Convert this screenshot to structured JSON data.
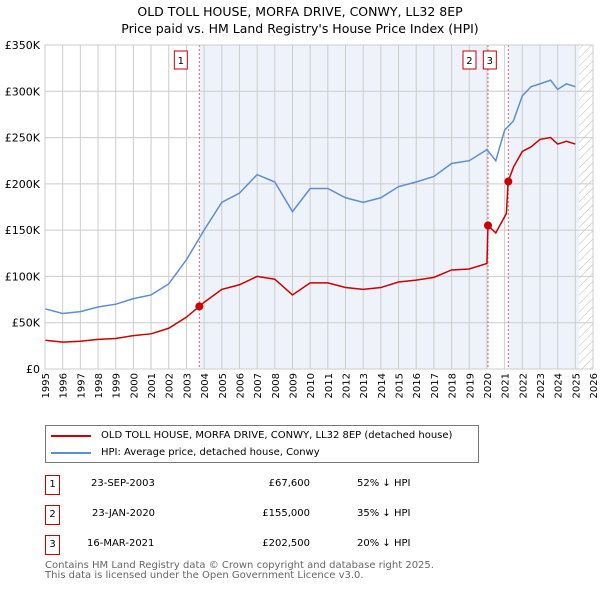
{
  "title": "OLD TOLL HOUSE, MORFA DRIVE, CONWY, LL32 8EP",
  "subtitle": "Price paid vs. HM Land Registry's House Price Index (HPI)",
  "colors": {
    "property": "#cc0000",
    "hpi": "#5b8fd0",
    "shade": "#eef3fb"
  },
  "chart_data": {
    "type": "line",
    "xlim": [
      1995,
      2026
    ],
    "ylim": [
      0,
      350000
    ],
    "x_ticks": [
      "1995",
      "1996",
      "1997",
      "1998",
      "1999",
      "2000",
      "2001",
      "2002",
      "2003",
      "2004",
      "2005",
      "2006",
      "2007",
      "2008",
      "2009",
      "2010",
      "2011",
      "2012",
      "2013",
      "2014",
      "2015",
      "2016",
      "2017",
      "2018",
      "2019",
      "2020",
      "2021",
      "2022",
      "2023",
      "2024",
      "2025",
      "2026"
    ],
    "y_ticks": [
      {
        "v": 0,
        "label": "£0"
      },
      {
        "v": 50000,
        "label": "£50K"
      },
      {
        "v": 100000,
        "label": "£100K"
      },
      {
        "v": 150000,
        "label": "£150K"
      },
      {
        "v": 200000,
        "label": "£200K"
      },
      {
        "v": 250000,
        "label": "£250K"
      },
      {
        "v": 300000,
        "label": "£300K"
      },
      {
        "v": 350000,
        "label": "£350K"
      }
    ],
    "series": [
      {
        "name": "OLD TOLL HOUSE, MORFA DRIVE, CONWY, LL32 8EP (detached house)",
        "color": "#cc0000",
        "x": [
          1995,
          1996,
          1997,
          1998,
          1999,
          2000,
          2001,
          2002,
          2003,
          2003.73,
          2004,
          2005,
          2006,
          2007,
          2008,
          2009,
          2010,
          2011,
          2012,
          2013,
          2014,
          2015,
          2016,
          2017,
          2018,
          2019,
          2020.0,
          2020.06,
          2020.5,
          2021.1,
          2021.2,
          2021.5,
          2022,
          2022.5,
          2023,
          2023.6,
          2024,
          2024.5,
          2025
        ],
        "y": [
          31000,
          29000,
          30000,
          32000,
          33000,
          36000,
          38000,
          44000,
          56000,
          67600,
          72000,
          86000,
          91000,
          100000,
          97000,
          80000,
          93000,
          93000,
          88000,
          86000,
          88000,
          94000,
          96000,
          99000,
          107000,
          108000,
          114000,
          155000,
          147000,
          168000,
          202500,
          218000,
          235000,
          240000,
          248000,
          250000,
          243000,
          246000,
          243000
        ]
      },
      {
        "name": "HPI: Average price, detached house, Conwy",
        "color": "#5b8fd0",
        "x": [
          1995,
          1996,
          1997,
          1998,
          1999,
          2000,
          2001,
          2002,
          2003,
          2004,
          2005,
          2006,
          2007,
          2008,
          2009,
          2010,
          2011,
          2012,
          2013,
          2014,
          2015,
          2016,
          2017,
          2018,
          2019,
          2020,
          2020.5,
          2021,
          2021.5,
          2022,
          2022.5,
          2023,
          2023.6,
          2024,
          2024.5,
          2025
        ],
        "y": [
          65000,
          60000,
          62000,
          67000,
          70000,
          76000,
          80000,
          92000,
          118000,
          150000,
          180000,
          190000,
          210000,
          202000,
          170000,
          195000,
          195000,
          185000,
          180000,
          185000,
          197000,
          202000,
          208000,
          222000,
          225000,
          237000,
          225000,
          258000,
          268000,
          295000,
          305000,
          308000,
          312000,
          302000,
          308000,
          305000
        ]
      }
    ],
    "sales": [
      {
        "n": "1",
        "x": 2003.73,
        "y": 67600
      },
      {
        "n": "2",
        "x": 2020.06,
        "y": 155000
      },
      {
        "n": "3",
        "x": 2021.21,
        "y": 202500
      }
    ],
    "projection_from": 2025.2
  },
  "legend": {
    "property": "OLD TOLL HOUSE, MORFA DRIVE, CONWY, LL32 8EP (detached house)",
    "hpi": "HPI: Average price, detached house, Conwy"
  },
  "table": [
    {
      "n": "1",
      "date": "23-SEP-2003",
      "price": "£67,600",
      "diff": "52% ↓ HPI"
    },
    {
      "n": "2",
      "date": "23-JAN-2020",
      "price": "£155,000",
      "diff": "35% ↓ HPI"
    },
    {
      "n": "3",
      "date": "16-MAR-2021",
      "price": "£202,500",
      "diff": "20% ↓ HPI"
    }
  ],
  "footer": [
    "Contains HM Land Registry data © Crown copyright and database right 2025.",
    "This data is licensed under the Open Government Licence v3.0."
  ]
}
